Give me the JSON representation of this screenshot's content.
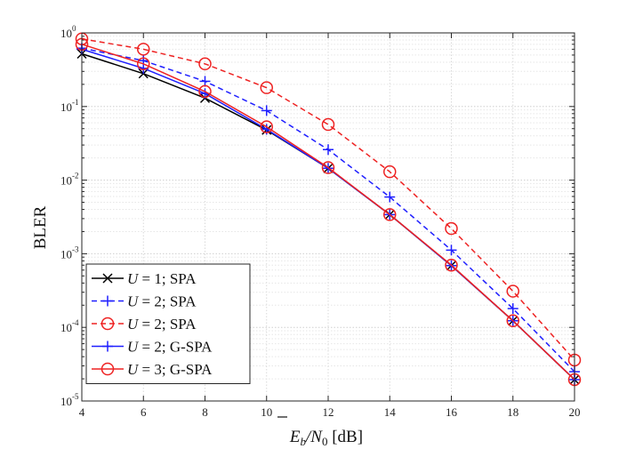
{
  "chart_data": {
    "type": "line",
    "xlabel": "Ē_b/N_0 [dB]",
    "xlabel_parts": {
      "base": "E",
      "sub1": "b",
      "slash": "/N",
      "sub2": "0",
      "unit": " [dB]"
    },
    "ylabel": "BLER",
    "x": [
      4,
      6,
      8,
      10,
      12,
      14,
      16,
      18,
      20
    ],
    "xlim": [
      4,
      20
    ],
    "ylim": [
      1e-05,
      1
    ],
    "yscale": "log",
    "grid": true,
    "legend_position": "bottom-left",
    "x_ticks": [
      "4",
      "6",
      "8",
      "10",
      "12",
      "14",
      "16",
      "18",
      "20"
    ],
    "y_ticks": [
      {
        "base": "10",
        "exp": "0"
      },
      {
        "base": "10",
        "exp": "-1"
      },
      {
        "base": "10",
        "exp": "-2"
      },
      {
        "base": "10",
        "exp": "-3"
      },
      {
        "base": "10",
        "exp": "-4"
      },
      {
        "base": "10",
        "exp": "-5"
      }
    ],
    "series": [
      {
        "name": "U = 1; SPA",
        "label_var": "U",
        "label_rest": " = 1; SPA",
        "color": "#000000",
        "dash": "solid",
        "marker": "x",
        "values": [
          0.52,
          0.28,
          0.13,
          0.048,
          0.0145,
          0.0034,
          0.00069,
          0.000123,
          1.95e-05
        ]
      },
      {
        "name": "U = 2; SPA",
        "label_var": "U",
        "label_rest": " = 2; SPA",
        "color": "#1f1fff",
        "dash": "dashed",
        "marker": "+",
        "values": [
          0.62,
          0.42,
          0.22,
          0.088,
          0.026,
          0.0059,
          0.00112,
          0.00018,
          2.5e-05
        ]
      },
      {
        "name": "U = 2; SPA",
        "label_var": "U",
        "label_rest": " = 2; SPA",
        "color": "#ee2222",
        "dash": "dashed",
        "marker": "o",
        "values": [
          0.83,
          0.6,
          0.38,
          0.18,
          0.057,
          0.013,
          0.0022,
          0.00031,
          3.6e-05
        ]
      },
      {
        "name": "U = 2; G-SPA",
        "label_var": "U",
        "label_rest": " = 2; G-SPA",
        "color": "#1f1fff",
        "dash": "solid",
        "marker": "+",
        "values": [
          0.6,
          0.33,
          0.15,
          0.049,
          0.0145,
          0.0034,
          0.00069,
          0.000123,
          1.95e-05
        ]
      },
      {
        "name": "U = 3; G-SPA",
        "label_var": "U",
        "label_rest": " = 3; G-SPA",
        "color": "#ee2222",
        "dash": "solid",
        "marker": "o",
        "values": [
          0.7,
          0.38,
          0.16,
          0.053,
          0.0148,
          0.0034,
          0.0007,
          0.000123,
          1.95e-05
        ]
      }
    ]
  }
}
